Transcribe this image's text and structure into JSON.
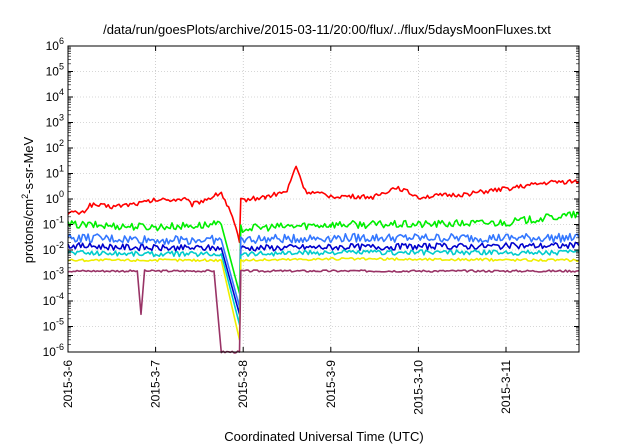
{
  "chart_data": {
    "type": "line",
    "title": "/data/run/goesPlots/archive/2015-03-11/20:00/flux/../flux/5daysMoonFluxes.txt",
    "xlabel": "Coordinated Universal Time (UTC)",
    "ylabel_parts": [
      "protons/cm",
      "2",
      "-s-sr-MeV"
    ],
    "y_scale": "log",
    "ylim": [
      1e-06,
      1000000.0
    ],
    "y_ticks": [
      {
        "base": "10",
        "exp": "-6"
      },
      {
        "base": "10",
        "exp": "-5"
      },
      {
        "base": "10",
        "exp": "-4"
      },
      {
        "base": "10",
        "exp": "-3"
      },
      {
        "base": "10",
        "exp": "-2"
      },
      {
        "base": "10",
        "exp": "-1"
      },
      {
        "base": "10",
        "exp": "0"
      },
      {
        "base": "10",
        "exp": "1"
      },
      {
        "base": "10",
        "exp": "2"
      },
      {
        "base": "10",
        "exp": "3"
      },
      {
        "base": "10",
        "exp": "4"
      },
      {
        "base": "10",
        "exp": "5"
      },
      {
        "base": "10",
        "exp": "6"
      }
    ],
    "x_range": [
      "2015-03-06",
      "2015-03-11 20:00"
    ],
    "x_ticks": [
      "2015-3-6",
      "2015-3-7",
      "2015-3-8",
      "2015-3-9",
      "2015-3-10",
      "2015-3-11"
    ],
    "grid": true,
    "legend": "none",
    "series": [
      {
        "color": "#ff0000",
        "noise": 0.18,
        "points": [
          [
            "2015-03-06 00:00",
            0.3
          ],
          [
            "2015-03-06 04:00",
            0.28
          ],
          [
            "2015-03-06 06:00",
            0.6
          ],
          [
            "2015-03-06 12:00",
            0.5
          ],
          [
            "2015-03-06 20:00",
            0.7
          ],
          [
            "2015-03-07 00:00",
            0.9
          ],
          [
            "2015-03-07 08:00",
            1.0
          ],
          [
            "2015-03-07 10:00",
            0.6
          ],
          [
            "2015-03-07 16:00",
            1.3
          ],
          [
            "2015-03-07 18:00",
            1.8
          ],
          [
            "2015-03-07 21:00",
            0.2
          ],
          [
            "2015-03-07 23:00",
            0.02
          ],
          [
            "2015-03-07 23:20",
            0.9
          ],
          [
            "2015-03-08 06:00",
            1.2
          ],
          [
            "2015-03-08 12:00",
            2.0
          ],
          [
            "2015-03-08 14:30",
            20
          ],
          [
            "2015-03-08 17:00",
            2.0
          ],
          [
            "2015-03-09 00:00",
            1.3
          ],
          [
            "2015-03-09 12:00",
            1.2
          ],
          [
            "2015-03-09 18:00",
            3.0
          ],
          [
            "2015-03-10 00:00",
            1.2
          ],
          [
            "2015-03-10 12:00",
            1.5
          ],
          [
            "2015-03-11 00:00",
            2.5
          ],
          [
            "2015-03-11 12:00",
            4.5
          ],
          [
            "2015-03-11 20:00",
            5.0
          ]
        ]
      },
      {
        "color": "#00ee00",
        "noise": 0.3,
        "points": [
          [
            "2015-03-06 00:00",
            0.1
          ],
          [
            "2015-03-07 00:00",
            0.08
          ],
          [
            "2015-03-07 18:00",
            0.1
          ],
          [
            "2015-03-07 23:00",
            0.0002
          ],
          [
            "2015-03-07 23:20",
            0.07
          ],
          [
            "2015-03-09 00:00",
            0.1
          ],
          [
            "2015-03-10 00:00",
            0.1
          ],
          [
            "2015-03-11 00:00",
            0.12
          ],
          [
            "2015-03-11 20:00",
            0.25
          ]
        ]
      },
      {
        "color": "#0000cc",
        "noise": 0.25,
        "points": [
          [
            "2015-03-06 00:00",
            0.015
          ],
          [
            "2015-03-07 00:00",
            0.012
          ],
          [
            "2015-03-07 18:00",
            0.012
          ],
          [
            "2015-03-07 23:00",
            3e-05
          ],
          [
            "2015-03-07 23:20",
            0.012
          ],
          [
            "2015-03-09 00:00",
            0.013
          ],
          [
            "2015-03-11 20:00",
            0.015
          ]
        ]
      },
      {
        "color": "#3377ff",
        "noise": 0.35,
        "points": [
          [
            "2015-03-06 00:00",
            0.03
          ],
          [
            "2015-03-07 00:00",
            0.025
          ],
          [
            "2015-03-07 18:00",
            0.025
          ],
          [
            "2015-03-07 23:00",
            6e-05
          ],
          [
            "2015-03-07 23:20",
            0.025
          ],
          [
            "2015-03-09 00:00",
            0.03
          ],
          [
            "2015-03-11 20:00",
            0.03
          ]
        ]
      },
      {
        "color": "#00cccc",
        "noise": 0.2,
        "points": [
          [
            "2015-03-06 00:00",
            0.008
          ],
          [
            "2015-03-07 00:00",
            0.007
          ],
          [
            "2015-03-07 18:00",
            0.007
          ],
          [
            "2015-03-07 23:00",
            1.2e-05
          ],
          [
            "2015-03-07 23:20",
            0.007
          ],
          [
            "2015-03-09 00:00",
            0.008
          ],
          [
            "2015-03-11 20:00",
            0.008
          ]
        ]
      },
      {
        "color": "#eeee00",
        "noise": 0.1,
        "points": [
          [
            "2015-03-06 00:00",
            0.004
          ],
          [
            "2015-03-07 00:00",
            0.004
          ],
          [
            "2015-03-07 18:00",
            0.004
          ],
          [
            "2015-03-07 23:00",
            3e-06
          ],
          [
            "2015-03-07 23:20",
            0.004
          ],
          [
            "2015-03-09 00:00",
            0.0045
          ],
          [
            "2015-03-11 20:00",
            0.004
          ]
        ]
      },
      {
        "color": "#993366",
        "noise": 0.08,
        "points": [
          [
            "2015-03-06 00:00",
            0.0015
          ],
          [
            "2015-03-06 19:00",
            0.0015
          ],
          [
            "2015-03-06 20:00",
            3e-05
          ],
          [
            "2015-03-06 21:00",
            0.0015
          ],
          [
            "2015-03-07 12:00",
            0.0015
          ],
          [
            "2015-03-07 16:00",
            0.0015
          ],
          [
            "2015-03-07 18:00",
            1e-06
          ],
          [
            "2015-03-07 23:00",
            1e-06
          ],
          [
            "2015-03-07 23:20",
            0.0015
          ],
          [
            "2015-03-11 20:00",
            0.0015
          ]
        ]
      }
    ]
  }
}
